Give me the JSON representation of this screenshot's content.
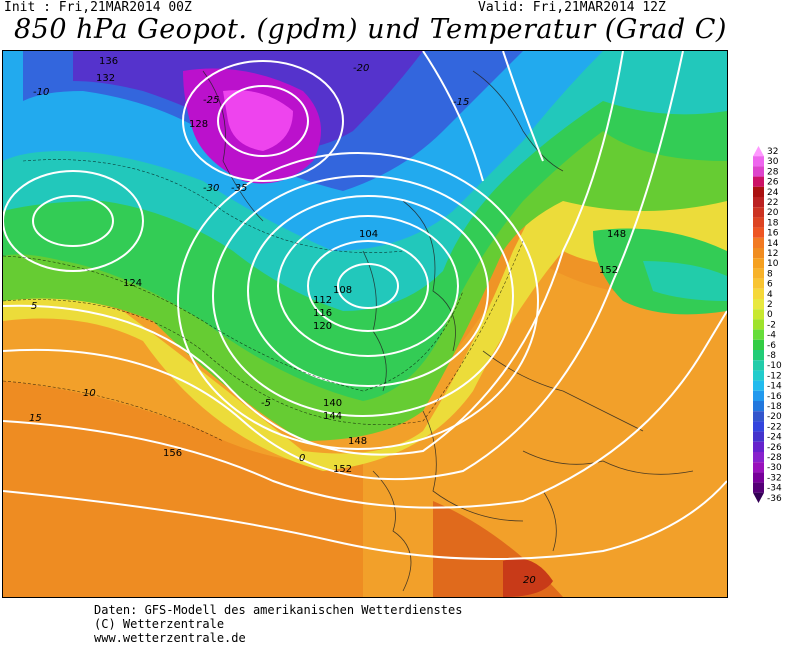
{
  "header": {
    "init": "Init : Fri,21MAR2014 00Z",
    "valid": "Valid: Fri,21MAR2014 12Z",
    "title": "850 hPa Geopot. (gpdm) und Temperatur (Grad C)"
  },
  "legend": {
    "values": [
      "32",
      "30",
      "28",
      "26",
      "24",
      "22",
      "20",
      "18",
      "16",
      "14",
      "12",
      "10",
      "8",
      "6",
      "4",
      "2",
      "0",
      "-2",
      "-4",
      "-6",
      "-8",
      "-10",
      "-12",
      "-14",
      "-16",
      "-18",
      "-20",
      "-22",
      "-24",
      "-26",
      "-28",
      "-30",
      "-32",
      "-34",
      "-36"
    ],
    "colors": [
      "#ff99ff",
      "#ee66ee",
      "#dd44cc",
      "#cc1166",
      "#aa1111",
      "#bb2222",
      "#cc3322",
      "#dd4422",
      "#ee5522",
      "#f27a22",
      "#f08c20",
      "#f5a020",
      "#f7b22a",
      "#f8c432",
      "#f5d83a",
      "#e8e840",
      "#c8e830",
      "#9ee22c",
      "#66dd3a",
      "#33cc44",
      "#22cc77",
      "#22ccaa",
      "#22cccc",
      "#22bbee",
      "#2299ee",
      "#2277dd",
      "#3355cc",
      "#3344dd",
      "#4433cc",
      "#6622cc",
      "#8822cc",
      "#9911bb",
      "#770099",
      "#550077",
      "#330055"
    ]
  },
  "map": {
    "geopotential_labels": [
      "136",
      "132",
      "128",
      "124",
      "120",
      "116",
      "112",
      "108",
      "104",
      "140",
      "144",
      "148",
      "152",
      "156",
      "148",
      "152"
    ],
    "temperature_labels": [
      "-10",
      "-15",
      "-20",
      "-25",
      "-30",
      "-35",
      "-5",
      "0",
      "5",
      "10",
      "15",
      "20"
    ]
  },
  "footer": {
    "line1": "Daten: GFS-Modell des amerikanischen Wetterdienstes",
    "line2": "(C) Wetterzentrale",
    "line3": "www.wetterzentrale.de"
  }
}
